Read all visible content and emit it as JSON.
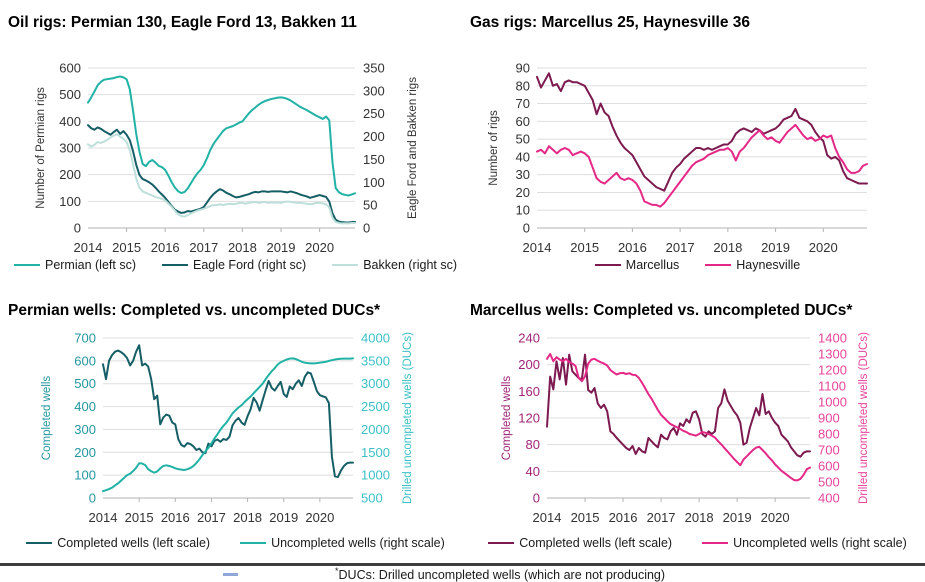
{
  "page": {
    "background": "#ffffff",
    "rule_color": "#3d3d3d"
  },
  "footnote": {
    "star": "*",
    "text": "DUCs: Drilled uncompleted wells (which are not producing)"
  },
  "chart_data": [
    {
      "id": "oil_rigs",
      "type": "line",
      "title": "Oil rigs: Permian 130, Eagle Ford 13, Bakken 11",
      "x_start": 2014,
      "x_ticks": [
        2014,
        2015,
        2016,
        2017,
        2018,
        2019,
        2020
      ],
      "grid": true,
      "legend_position": "bottom",
      "left_axis": {
        "label": "Number of Permian rigs",
        "min": 0,
        "max": 600,
        "step": 100,
        "color": "#333333"
      },
      "right_axis": {
        "label": "Eagle Ford and Bakken rigs",
        "min": 0,
        "max": 350,
        "step": 50,
        "color": "#333333"
      },
      "series": [
        {
          "name": "Permian (left sc)",
          "axis": "left",
          "color": "#21b2a6",
          "values": [
            470,
            490,
            512,
            535,
            548,
            556,
            558,
            560,
            562,
            566,
            568,
            565,
            558,
            520,
            440,
            352,
            286,
            240,
            232,
            248,
            255,
            245,
            233,
            228,
            218,
            196,
            172,
            152,
            138,
            131,
            135,
            148,
            168,
            188,
            205,
            218,
            236,
            262,
            292,
            315,
            332,
            348,
            364,
            374,
            378,
            382,
            388,
            395,
            400,
            415,
            430,
            442,
            452,
            462,
            470,
            476,
            480,
            484,
            486,
            489,
            490,
            488,
            484,
            478,
            470,
            462,
            454,
            448,
            442,
            435,
            428,
            421,
            415,
            409,
            418,
            404,
            246,
            150,
            134,
            127,
            124,
            122,
            126,
            130
          ]
        },
        {
          "name": "Eagle Ford (right sc)",
          "axis": "right",
          "color": "#155e66",
          "values": [
            225,
            218,
            215,
            220,
            217,
            212,
            208,
            204,
            210,
            215,
            206,
            212,
            204,
            192,
            168,
            138,
            116,
            107,
            104,
            100,
            95,
            88,
            80,
            73,
            66,
            57,
            48,
            40,
            36,
            33,
            34,
            37,
            36,
            38,
            40,
            42,
            46,
            56,
            66,
            74,
            80,
            85,
            82,
            77,
            74,
            70,
            67,
            68,
            70,
            72,
            74,
            77,
            79,
            78,
            80,
            80,
            79,
            80,
            80,
            80,
            80,
            79,
            78,
            80,
            78,
            76,
            73,
            71,
            69,
            66,
            68,
            70,
            72,
            70,
            68,
            58,
            32,
            18,
            14,
            13,
            12,
            12,
            13,
            13
          ]
        },
        {
          "name": "Bakken (right sc)",
          "axis": "right",
          "color": "#bfdfdb",
          "values": [
            183,
            178,
            182,
            188,
            186,
            189,
            193,
            198,
            202,
            205,
            200,
            195,
            188,
            170,
            140,
            108,
            88,
            80,
            77,
            74,
            71,
            68,
            66,
            64,
            60,
            53,
            46,
            38,
            30,
            26,
            25,
            28,
            32,
            35,
            38,
            40,
            42,
            45,
            48,
            50,
            50,
            52,
            50,
            52,
            53,
            52,
            53,
            55,
            55,
            53,
            55,
            56,
            57,
            55,
            56,
            57,
            55,
            56,
            55,
            56,
            55,
            57,
            58,
            57,
            56,
            55,
            55,
            54,
            53,
            52,
            53,
            55,
            55,
            54,
            52,
            45,
            22,
            13,
            11,
            10,
            10,
            10,
            11,
            11
          ]
        }
      ]
    },
    {
      "id": "gas_rigs",
      "type": "line",
      "title": "Gas rigs: Marcellus 25, Haynesville 36",
      "x_start": 2014,
      "x_ticks": [
        2014,
        2015,
        2016,
        2017,
        2018,
        2019,
        2020
      ],
      "grid": true,
      "legend_position": "bottom",
      "left_axis": {
        "label": "Number of rigs",
        "min": 0,
        "max": 90,
        "step": 10,
        "color": "#333333"
      },
      "series": [
        {
          "name": "Marcellus",
          "axis": "left",
          "color": "#7c1a50",
          "values": [
            85,
            79,
            83,
            87,
            80,
            81,
            77,
            82,
            83,
            82,
            82,
            81,
            80,
            76,
            72,
            64,
            70,
            65,
            63,
            57,
            52,
            48,
            45,
            43,
            41,
            37,
            33,
            29,
            27,
            25,
            23,
            22,
            21,
            26,
            31,
            34,
            36,
            39,
            41,
            43,
            45,
            45,
            44,
            45,
            44,
            45,
            46,
            47,
            47,
            49,
            53,
            55,
            56,
            55,
            54,
            56,
            55,
            53,
            54,
            55,
            56,
            58,
            61,
            62,
            63,
            67,
            62,
            61,
            60,
            58,
            54,
            51,
            49,
            41,
            39,
            40,
            38,
            32,
            28,
            27,
            26,
            25,
            25,
            25
          ]
        },
        {
          "name": "Haynesville",
          "axis": "left",
          "color": "#e52787",
          "values": [
            43,
            44,
            42,
            46,
            44,
            42,
            44,
            45,
            44,
            41,
            42,
            43,
            42,
            40,
            34,
            28,
            26,
            25,
            27,
            29,
            31,
            28,
            27,
            28,
            27,
            25,
            21,
            15,
            14,
            13,
            13,
            12,
            14,
            17,
            20,
            23,
            26,
            29,
            32,
            35,
            37,
            38,
            39,
            41,
            42,
            43,
            44,
            44,
            45,
            43,
            38,
            43,
            45,
            48,
            51,
            53,
            55,
            52,
            50,
            51,
            49,
            48,
            51,
            54,
            56,
            58,
            55,
            52,
            50,
            51,
            49,
            50,
            52,
            51,
            52,
            45,
            40,
            37,
            33,
            31,
            31,
            32,
            35,
            36
          ]
        }
      ]
    },
    {
      "id": "permian_wells",
      "type": "line",
      "title": "Permian wells: Completed vs. uncompleted DUCs*",
      "x_start": 2014,
      "x_ticks": [
        2014,
        2015,
        2016,
        2017,
        2018,
        2019,
        2020
      ],
      "grid": true,
      "legend_position": "bottom",
      "left_axis": {
        "label": "Completed wells",
        "min": 0,
        "max": 700,
        "step": 100,
        "color": "#2596a0"
      },
      "right_axis": {
        "label": "Drilled uncompleted wells (DUCs)",
        "min": 500,
        "max": 4000,
        "step": 500,
        "color": "#3bc0c6"
      },
      "series": [
        {
          "name": "Completed wells (left scale)",
          "axis": "left",
          "color": "#155e66",
          "values": [
            585,
            520,
            600,
            625,
            640,
            645,
            638,
            628,
            612,
            580,
            600,
            640,
            668,
            580,
            588,
            575,
            520,
            432,
            448,
            322,
            352,
            365,
            360,
            330,
            322,
            258,
            232,
            225,
            240,
            236,
            226,
            210,
            216,
            200,
            196,
            238,
            226,
            250,
            256,
            246,
            258,
            254,
            268,
            318,
            338,
            350,
            330,
            320,
            358,
            388,
            438,
            418,
            382,
            428,
            472,
            512,
            482,
            470,
            490,
            508,
            455,
            442,
            488,
            476,
            500,
            515,
            490,
            530,
            550,
            545,
            508,
            468,
            450,
            445,
            440,
            415,
            180,
            95,
            92,
            120,
            140,
            152,
            155,
            155
          ]
        },
        {
          "name": "Uncompleted wells (right scale)",
          "axis": "right",
          "color": "#21b2a6",
          "values": [
            650,
            670,
            695,
            725,
            775,
            820,
            880,
            940,
            1000,
            1030,
            1090,
            1160,
            1260,
            1255,
            1220,
            1130,
            1085,
            1055,
            1080,
            1150,
            1200,
            1215,
            1200,
            1180,
            1150,
            1132,
            1120,
            1112,
            1130,
            1155,
            1200,
            1265,
            1345,
            1440,
            1520,
            1600,
            1700,
            1800,
            1895,
            1995,
            2080,
            2150,
            2250,
            2350,
            2420,
            2480,
            2530,
            2600,
            2660,
            2720,
            2790,
            2860,
            2930,
            3000,
            3100,
            3190,
            3270,
            3340,
            3420,
            3470,
            3500,
            3530,
            3550,
            3555,
            3540,
            3510,
            3480,
            3460,
            3450,
            3445,
            3445,
            3450,
            3460,
            3470,
            3480,
            3500,
            3515,
            3530,
            3540,
            3545,
            3550,
            3550,
            3550,
            3555
          ]
        }
      ]
    },
    {
      "id": "marcellus_wells",
      "type": "line",
      "title": "Marcellus wells: Completed vs. uncompleted DUCs*",
      "x_start": 2014,
      "x_ticks": [
        2014,
        2015,
        2016,
        2017,
        2018,
        2019,
        2020
      ],
      "grid": true,
      "legend_position": "bottom",
      "left_axis": {
        "label": "Completed wells",
        "min": 0,
        "max": 240,
        "step": 40,
        "color": "#a12577"
      },
      "right_axis": {
        "label": "Drilled uncompleted wells (DUCs)",
        "min": 400,
        "max": 1400,
        "step": 100,
        "color": "#e8459c"
      },
      "series": [
        {
          "name": "Completed wells (left scale)",
          "axis": "left",
          "color": "#7c1a50",
          "values": [
            107,
            182,
            163,
            205,
            178,
            210,
            170,
            215,
            190,
            185,
            180,
            178,
            215,
            162,
            158,
            165,
            142,
            135,
            140,
            130,
            100,
            96,
            90,
            85,
            80,
            75,
            72,
            78,
            66,
            75,
            70,
            68,
            90,
            85,
            80,
            76,
            95,
            90,
            88,
            100,
            105,
            95,
            112,
            108,
            118,
            113,
            128,
            130,
            118,
            96,
            92,
            100,
            96,
            100,
            135,
            142,
            163,
            146,
            138,
            130,
            124,
            113,
            80,
            83,
            105,
            120,
            135,
            124,
            156,
            126,
            130,
            120,
            113,
            108,
            95,
            90,
            85,
            76,
            70,
            64,
            62,
            68,
            70,
            70
          ]
        },
        {
          "name": "Uncompleted wells (right scale)",
          "axis": "right",
          "color": "#e52787",
          "values": [
            1270,
            1300,
            1255,
            1280,
            1265,
            1255,
            1270,
            1250,
            1240,
            1225,
            1150,
            1130,
            1160,
            1240,
            1265,
            1270,
            1258,
            1248,
            1240,
            1228,
            1200,
            1185,
            1172,
            1180,
            1182,
            1175,
            1180,
            1170,
            1168,
            1150,
            1120,
            1085,
            1050,
            1020,
            985,
            950,
            920,
            900,
            880,
            862,
            852,
            842,
            832,
            820,
            812,
            800,
            795,
            790,
            800,
            812,
            808,
            800,
            790,
            778,
            755,
            735,
            712,
            690,
            668,
            645,
            625,
            605,
            640,
            660,
            680,
            700,
            715,
            720,
            700,
            680,
            655,
            635,
            610,
            590,
            570,
            555,
            540,
            525,
            512,
            510,
            520,
            545,
            580,
            590
          ]
        }
      ]
    }
  ]
}
